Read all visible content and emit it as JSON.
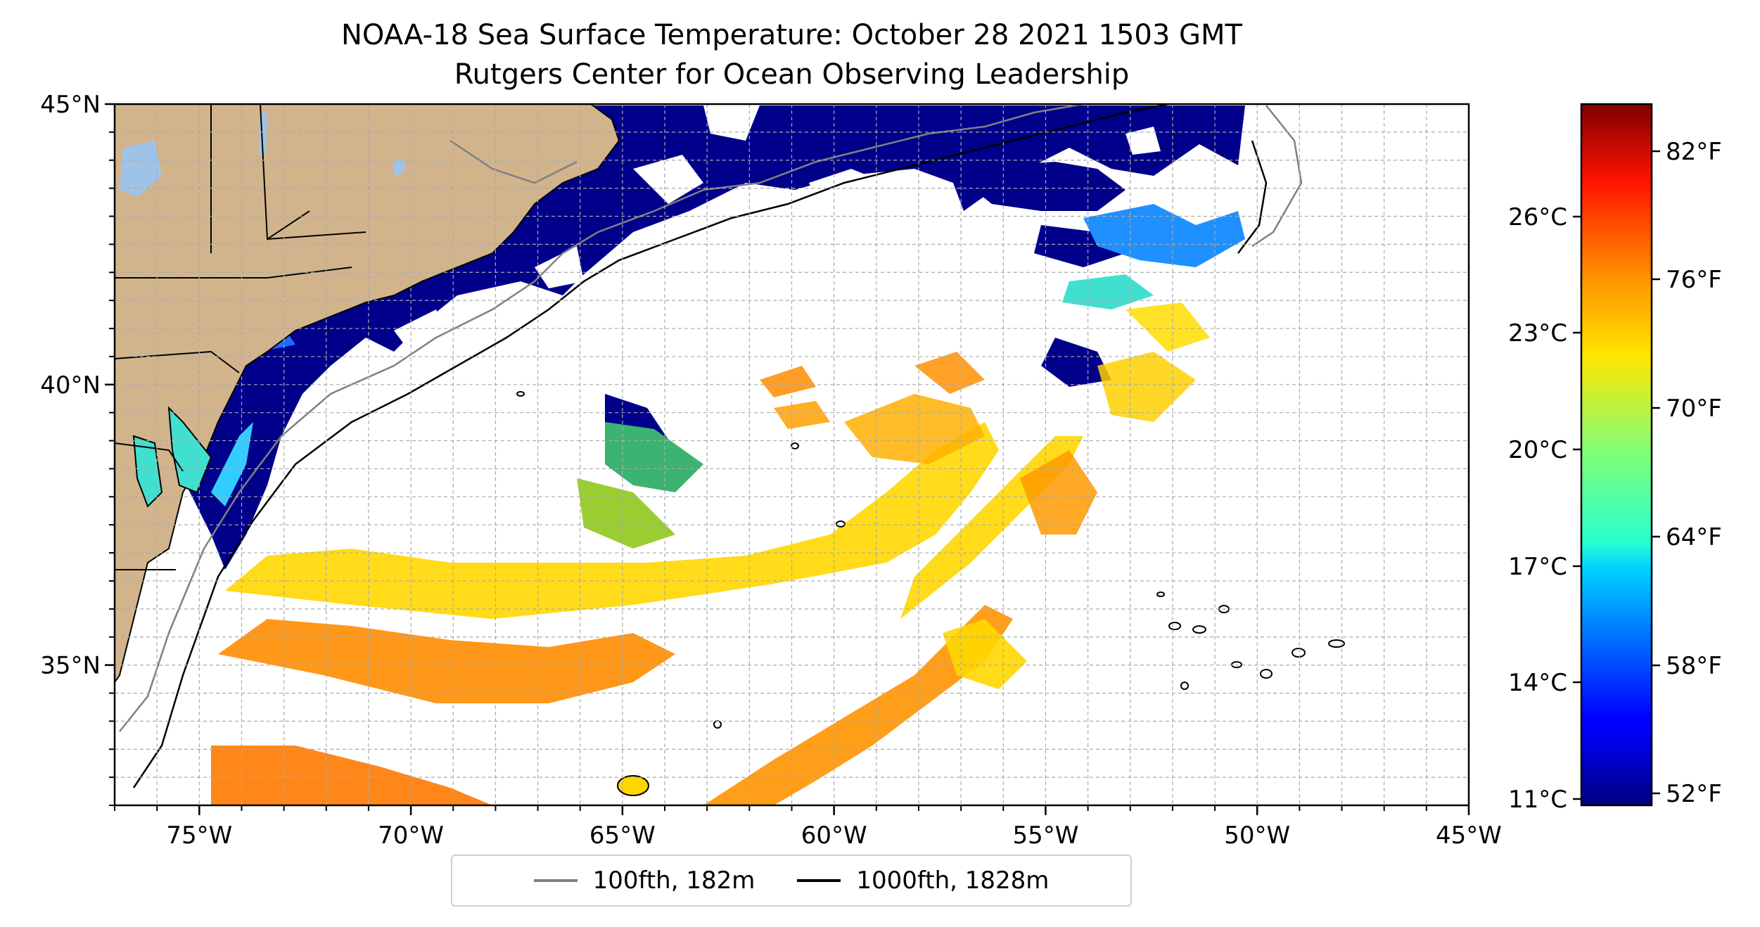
{
  "title": {
    "line1": "NOAA-18 Sea Surface Temperature: October 28 2021 1503 GMT",
    "line2": "Rutgers Center for Ocean Observing Leadership"
  },
  "map": {
    "lon_range": [
      -77,
      -45
    ],
    "lat_range": [
      32.5,
      45
    ],
    "x_ticks": [
      {
        "value": -75,
        "label": "75°W"
      },
      {
        "value": -70,
        "label": "70°W"
      },
      {
        "value": -65,
        "label": "65°W"
      },
      {
        "value": -60,
        "label": "60°W"
      },
      {
        "value": -55,
        "label": "55°W"
      },
      {
        "value": -50,
        "label": "50°W"
      },
      {
        "value": -45,
        "label": "45°W"
      }
    ],
    "y_ticks": [
      {
        "value": 45,
        "label": "45°N"
      },
      {
        "value": 40,
        "label": "40°N"
      },
      {
        "value": 35,
        "label": "35°N"
      }
    ],
    "grid": true,
    "land_color": "#d2b48c",
    "lake_color": "#9fc3e8"
  },
  "colorbar": {
    "colormap": "jet",
    "celsius_ticks": [
      "26°C",
      "23°C",
      "20°C",
      "17°C",
      "14°C",
      "11°C"
    ],
    "fahrenheit_ticks": [
      "82°F",
      "76°F",
      "70°F",
      "64°F",
      "58°F",
      "52°F"
    ]
  },
  "legend": {
    "items": [
      {
        "label": "100fth, 182m",
        "color": "#808080"
      },
      {
        "label": "1000fth, 1828m",
        "color": "#000000"
      }
    ]
  }
}
